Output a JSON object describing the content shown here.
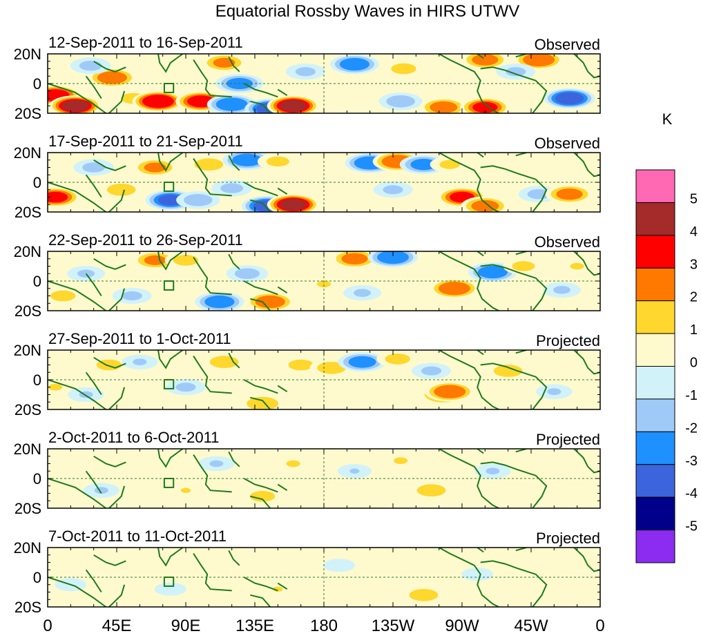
{
  "chart_data": {
    "type": "heatmap",
    "title": "Equatorial Rossby Waves in HIRS UTWV",
    "colorbar": {
      "unit_label": "K",
      "colors": [
        "#8b2cf0",
        "#00008b",
        "#3c64dc",
        "#1e90ff",
        "#9fcaf8",
        "#d2f2fa",
        "#fffacd",
        "#ffd72d",
        "#ff7800",
        "#ff0000",
        "#a52a2a",
        "#ff69b4"
      ],
      "tick_labels": [
        "-5",
        "-4",
        "-3",
        "-2",
        "-1",
        "0",
        "1",
        "2",
        "3",
        "4",
        "5"
      ]
    },
    "x_axis": {
      "range_deg_east": [
        0,
        360
      ],
      "tick_values_deg_east": [
        0,
        45,
        90,
        135,
        180,
        225,
        270,
        315,
        360
      ],
      "tick_labels": [
        "0",
        "45E",
        "90E",
        "135E",
        "180",
        "135W",
        "90W",
        "45W",
        "0"
      ]
    },
    "y_axis": {
      "range_lat": [
        -20,
        20
      ],
      "tick_values_lat": [
        20,
        0,
        -20
      ],
      "tick_labels": [
        "20N",
        "0",
        "20S"
      ]
    },
    "map_layers": {
      "coastline_color": "#1b7a1b",
      "equator_reference_line": "dashed",
      "dateline_reference_line": "dashed",
      "marker_box": {
        "lon": [
          76,
          82
        ],
        "lat": [
          -6,
          0
        ]
      }
    },
    "panels": [
      {
        "period": "12-Sep-2011 to 16-Sep-2011",
        "status": "Observed",
        "anomalies": [
          {
            "lon": 5,
            "lat": -8,
            "value": 3.6
          },
          {
            "lon": 18,
            "lat": -15,
            "value": 4.2
          },
          {
            "lon": 42,
            "lat": 4,
            "value": 2.8
          },
          {
            "lon": 56,
            "lat": -10,
            "value": 1.6
          },
          {
            "lon": 72,
            "lat": -12,
            "value": 4.0
          },
          {
            "lon": 100,
            "lat": -12,
            "value": 3.5
          },
          {
            "lon": 115,
            "lat": 14,
            "value": 2.2
          },
          {
            "lon": 120,
            "lat": -14,
            "value": -3.0
          },
          {
            "lon": 125,
            "lat": 0,
            "value": -2.5
          },
          {
            "lon": 145,
            "lat": -17,
            "value": -3.5
          },
          {
            "lon": 160,
            "lat": -15,
            "value": 4.2
          },
          {
            "lon": 168,
            "lat": 8,
            "value": -1.4
          },
          {
            "lon": 200,
            "lat": 13,
            "value": -2.8
          },
          {
            "lon": 232,
            "lat": 10,
            "value": 1.6
          },
          {
            "lon": 230,
            "lat": -12,
            "value": -1.8
          },
          {
            "lon": 258,
            "lat": -16,
            "value": 2.6
          },
          {
            "lon": 285,
            "lat": -16,
            "value": 3.2
          },
          {
            "lon": 285,
            "lat": 16,
            "value": 2.5
          },
          {
            "lon": 320,
            "lat": 16,
            "value": 3.0
          },
          {
            "lon": 340,
            "lat": -10,
            "value": -3.6
          },
          {
            "lon": 305,
            "lat": 8,
            "value": -1.4
          },
          {
            "lon": 28,
            "lat": 12,
            "value": -1.5
          }
        ]
      },
      {
        "period": "17-Sep-2011 to 21-Sep-2011",
        "status": "Observed",
        "anomalies": [
          {
            "lon": 5,
            "lat": -10,
            "value": 3.2
          },
          {
            "lon": 30,
            "lat": 10,
            "value": -1.5
          },
          {
            "lon": 48,
            "lat": -5,
            "value": 1.8
          },
          {
            "lon": 70,
            "lat": 10,
            "value": 2.2
          },
          {
            "lon": 80,
            "lat": -12,
            "value": -3.2
          },
          {
            "lon": 98,
            "lat": -12,
            "value": -1.8
          },
          {
            "lon": 105,
            "lat": 12,
            "value": 1.8
          },
          {
            "lon": 120,
            "lat": -4,
            "value": -1.5
          },
          {
            "lon": 130,
            "lat": 15,
            "value": -2.8
          },
          {
            "lon": 150,
            "lat": 14,
            "value": 1.5
          },
          {
            "lon": 143,
            "lat": -16,
            "value": -3.5
          },
          {
            "lon": 160,
            "lat": -15,
            "value": 4.2
          },
          {
            "lon": 210,
            "lat": 13,
            "value": -3.0
          },
          {
            "lon": 228,
            "lat": 14,
            "value": 3.0
          },
          {
            "lon": 245,
            "lat": 12,
            "value": -2.5
          },
          {
            "lon": 262,
            "lat": 12,
            "value": 1.4
          },
          {
            "lon": 225,
            "lat": -5,
            "value": -1.4
          },
          {
            "lon": 270,
            "lat": -10,
            "value": 3.2
          },
          {
            "lon": 285,
            "lat": -16,
            "value": 2.6
          },
          {
            "lon": 320,
            "lat": -8,
            "value": -1.5
          },
          {
            "lon": 340,
            "lat": -8,
            "value": 2.5
          }
        ]
      },
      {
        "period": "22-Sep-2011 to 26-Sep-2011",
        "status": "Observed",
        "anomalies": [
          {
            "lon": 10,
            "lat": -10,
            "value": 1.6
          },
          {
            "lon": 25,
            "lat": 5,
            "value": -1.3
          },
          {
            "lon": 55,
            "lat": -10,
            "value": -1.4
          },
          {
            "lon": 70,
            "lat": 14,
            "value": 2.2
          },
          {
            "lon": 90,
            "lat": 14,
            "value": 1.6
          },
          {
            "lon": 112,
            "lat": -14,
            "value": -2.8
          },
          {
            "lon": 130,
            "lat": 5,
            "value": -1.6
          },
          {
            "lon": 145,
            "lat": -14,
            "value": 2.8
          },
          {
            "lon": 180,
            "lat": -2,
            "value": 1.2
          },
          {
            "lon": 200,
            "lat": 15,
            "value": 2.5
          },
          {
            "lon": 225,
            "lat": 16,
            "value": -3.0
          },
          {
            "lon": 205,
            "lat": -8,
            "value": -1.3
          },
          {
            "lon": 265,
            "lat": -5,
            "value": 3.0
          },
          {
            "lon": 290,
            "lat": 6,
            "value": -2.8
          },
          {
            "lon": 310,
            "lat": 10,
            "value": 1.5
          },
          {
            "lon": 335,
            "lat": -6,
            "value": -1.3
          },
          {
            "lon": 345,
            "lat": 10,
            "value": 1.2
          }
        ]
      },
      {
        "period": "27-Sep-2011 to 1-Oct-2011",
        "status": "Projected",
        "anomalies": [
          {
            "lon": 5,
            "lat": -5,
            "value": 1.2
          },
          {
            "lon": 25,
            "lat": -10,
            "value": -1.2
          },
          {
            "lon": 40,
            "lat": 10,
            "value": 1.6
          },
          {
            "lon": 60,
            "lat": 12,
            "value": -1.2
          },
          {
            "lon": 90,
            "lat": -5,
            "value": -1.4
          },
          {
            "lon": 115,
            "lat": 12,
            "value": 1.8
          },
          {
            "lon": 140,
            "lat": -16,
            "value": 2.0
          },
          {
            "lon": 165,
            "lat": 10,
            "value": 1.6
          },
          {
            "lon": 185,
            "lat": 8,
            "value": 1.8
          },
          {
            "lon": 205,
            "lat": 12,
            "value": -2.6
          },
          {
            "lon": 228,
            "lat": 14,
            "value": 1.6
          },
          {
            "lon": 250,
            "lat": 6,
            "value": -1.4
          },
          {
            "lon": 258,
            "lat": -10,
            "value": 2.6
          },
          {
            "lon": 262,
            "lat": -8,
            "value": 3.0
          },
          {
            "lon": 300,
            "lat": 6,
            "value": 1.8
          },
          {
            "lon": 330,
            "lat": -8,
            "value": -1.2
          }
        ]
      },
      {
        "period": "2-Oct-2011 to 6-Oct-2011",
        "status": "Projected",
        "anomalies": [
          {
            "lon": 10,
            "lat": -8,
            "value": 1.0
          },
          {
            "lon": 35,
            "lat": -8,
            "value": -1.2
          },
          {
            "lon": 60,
            "lat": 10,
            "value": 1.0
          },
          {
            "lon": 90,
            "lat": -8,
            "value": 1.1
          },
          {
            "lon": 110,
            "lat": 10,
            "value": -1.2
          },
          {
            "lon": 140,
            "lat": -12,
            "value": 1.6
          },
          {
            "lon": 160,
            "lat": 10,
            "value": 1.2
          },
          {
            "lon": 200,
            "lat": 5,
            "value": -1.1
          },
          {
            "lon": 230,
            "lat": 12,
            "value": 1.2
          },
          {
            "lon": 250,
            "lat": -8,
            "value": 1.8
          },
          {
            "lon": 290,
            "lat": 5,
            "value": -1.2
          },
          {
            "lon": 320,
            "lat": -5,
            "value": 1.0
          }
        ]
      },
      {
        "period": "7-Oct-2011 to 11-Oct-2011",
        "status": "Projected",
        "anomalies": [
          {
            "lon": 15,
            "lat": -5,
            "value": -1.0
          },
          {
            "lon": 50,
            "lat": 5,
            "value": 1.0
          },
          {
            "lon": 80,
            "lat": -8,
            "value": -1.0
          },
          {
            "lon": 115,
            "lat": 8,
            "value": 1.0
          },
          {
            "lon": 150,
            "lat": -8,
            "value": 1.1
          },
          {
            "lon": 190,
            "lat": 8,
            "value": -1.0
          },
          {
            "lon": 225,
            "lat": 8,
            "value": 1.0
          },
          {
            "lon": 245,
            "lat": -12,
            "value": 1.8
          },
          {
            "lon": 280,
            "lat": 2,
            "value": -1.0
          },
          {
            "lon": 330,
            "lat": -5,
            "value": 1.0
          }
        ]
      }
    ]
  }
}
